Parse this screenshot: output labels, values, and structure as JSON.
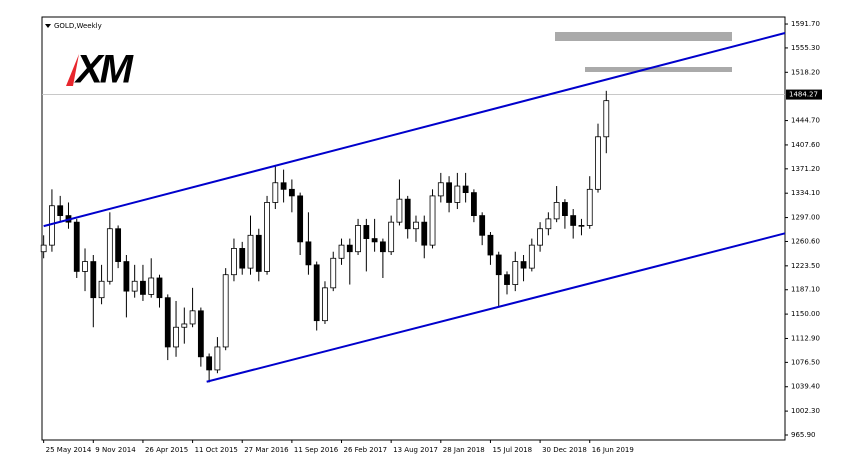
{
  "chart_data": {
    "type": "candlestick",
    "title": "GOLD,Weekly",
    "logo": "XM",
    "categories": [
      "25 May 2014",
      null,
      null,
      null,
      null,
      null,
      "9 Nov 2014",
      null,
      null,
      null,
      null,
      null,
      "26 Apr 2015",
      null,
      null,
      null,
      null,
      null,
      "11 Oct 2015",
      null,
      null,
      null,
      null,
      null,
      "27 Mar 2016",
      null,
      null,
      null,
      null,
      null,
      "11 Sep 2016",
      null,
      null,
      null,
      null,
      null,
      "26 Feb 2017",
      null,
      null,
      null,
      null,
      null,
      "13 Aug 2017",
      null,
      null,
      null,
      null,
      null,
      "28 Jan 2018",
      null,
      null,
      null,
      null,
      null,
      "15 Jul 2018",
      null,
      null,
      null,
      null,
      null,
      "30 Dec 2018",
      null,
      null,
      null,
      null,
      null,
      "16 Jun 2019",
      null,
      null
    ],
    "open": [
      1245,
      1255,
      1315,
      1300,
      1290,
      1215,
      1230,
      1175,
      1200,
      1280,
      1230,
      1185,
      1200,
      1180,
      1205,
      1175,
      1100,
      1130,
      1135,
      1155,
      1085,
      1065,
      1100,
      1210,
      1250,
      1220,
      1270,
      1215,
      1320,
      1350,
      1340,
      1330,
      1260,
      1225,
      1140,
      1190,
      1235,
      1255,
      1245,
      1285,
      1265,
      1260,
      1245,
      1290,
      1325,
      1280,
      1290,
      1255,
      1330,
      1350,
      1320,
      1345,
      1335,
      1300,
      1270,
      1240,
      1210,
      1195,
      1230,
      1220,
      1255,
      1280,
      1295,
      1320,
      1300,
      1285,
      1285,
      1340,
      1420
    ],
    "high": [
      1270,
      1340,
      1330,
      1320,
      1295,
      1250,
      1240,
      1225,
      1305,
      1285,
      1240,
      1225,
      1225,
      1235,
      1210,
      1180,
      1170,
      1160,
      1190,
      1160,
      1090,
      1115,
      1220,
      1265,
      1260,
      1300,
      1280,
      1330,
      1375,
      1370,
      1355,
      1335,
      1305,
      1230,
      1200,
      1245,
      1265,
      1265,
      1295,
      1295,
      1295,
      1265,
      1300,
      1355,
      1330,
      1300,
      1300,
      1340,
      1365,
      1360,
      1365,
      1365,
      1340,
      1305,
      1275,
      1245,
      1215,
      1245,
      1240,
      1265,
      1290,
      1305,
      1345,
      1325,
      1310,
      1295,
      1360,
      1440,
      1490
    ],
    "low": [
      1235,
      1245,
      1290,
      1280,
      1205,
      1185,
      1130,
      1165,
      1195,
      1220,
      1145,
      1175,
      1170,
      1175,
      1160,
      1080,
      1085,
      1105,
      1130,
      1070,
      1046,
      1060,
      1095,
      1200,
      1210,
      1210,
      1200,
      1210,
      1310,
      1320,
      1305,
      1240,
      1210,
      1125,
      1135,
      1185,
      1225,
      1195,
      1240,
      1215,
      1245,
      1205,
      1240,
      1285,
      1265,
      1260,
      1235,
      1250,
      1320,
      1305,
      1310,
      1320,
      1290,
      1255,
      1225,
      1160,
      1180,
      1185,
      1200,
      1215,
      1245,
      1270,
      1290,
      1280,
      1265,
      1270,
      1280,
      1335,
      1395
    ],
    "close": [
      1255,
      1315,
      1300,
      1290,
      1215,
      1230,
      1175,
      1200,
      1280,
      1230,
      1185,
      1200,
      1180,
      1205,
      1175,
      1100,
      1130,
      1135,
      1155,
      1085,
      1065,
      1100,
      1210,
      1250,
      1220,
      1270,
      1215,
      1320,
      1350,
      1340,
      1330,
      1260,
      1225,
      1140,
      1190,
      1235,
      1255,
      1245,
      1285,
      1265,
      1260,
      1245,
      1290,
      1325,
      1280,
      1290,
      1255,
      1330,
      1350,
      1320,
      1345,
      1335,
      1300,
      1270,
      1240,
      1210,
      1195,
      1230,
      1220,
      1255,
      1280,
      1295,
      1320,
      1300,
      1285,
      1285,
      1340,
      1420,
      1475
    ],
    "color": "#000000",
    "trendlines": [
      {
        "color": "#0000cc",
        "x": [
          0,
          89.6
        ],
        "values": [
          1284,
          1578
        ]
      },
      {
        "color": "#0000cc",
        "x": [
          19.7,
          89.6
        ],
        "values": [
          1047,
          1273
        ]
      }
    ],
    "last_price": {
      "value": 1484.27,
      "label": "1484.27"
    },
    "xlim": [
      -0.2,
      89.6
    ],
    "ylim": [
      958.3,
      1602.4
    ],
    "yticks": [
      {
        "value": 1591.7,
        "label": "1591.70"
      },
      {
        "value": 1555.3,
        "label": "1555.30"
      },
      {
        "value": 1518.2,
        "label": "1518.20"
      },
      {
        "value": 1444.7,
        "label": "1444.70"
      },
      {
        "value": 1407.6,
        "label": "1407.60"
      },
      {
        "value": 1371.2,
        "label": "1371.20"
      },
      {
        "value": 1334.1,
        "label": "1334.10"
      },
      {
        "value": 1297,
        "label": "1297.00"
      },
      {
        "value": 1260.6,
        "label": "1260.60"
      },
      {
        "value": 1223.5,
        "label": "1223.50"
      },
      {
        "value": 1187.1,
        "label": "1187.10"
      },
      {
        "value": 1150,
        "label": "1150.00"
      },
      {
        "value": 1112.9,
        "label": "1112.90"
      },
      {
        "value": 1076.5,
        "label": "1076.50"
      },
      {
        "value": 1039.4,
        "label": "1039.40"
      },
      {
        "value": 1002.3,
        "label": "1002.30"
      },
      {
        "value": 965.9,
        "label": "965.90"
      }
    ]
  }
}
